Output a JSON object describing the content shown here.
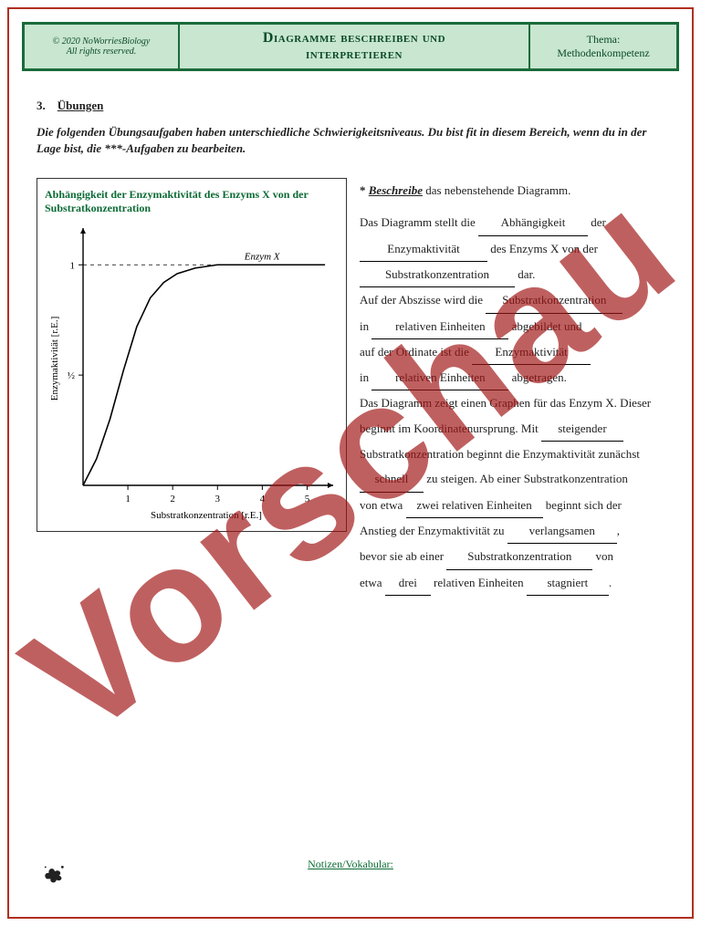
{
  "page": {
    "border_color": "#b03020",
    "background": "#ffffff"
  },
  "header": {
    "band_bg": "#c8e6d0",
    "band_border": "#1a6b3a",
    "text_color": "#0b4a28",
    "copyright_line1": "© 2020 NoWorriesBiology",
    "copyright_line2": "All rights reserved.",
    "title_line1": "Diagramme beschreiben und",
    "title_line2": "interpretieren",
    "theme_label": "Thema:",
    "theme_value": "Methodenkompetenz"
  },
  "section": {
    "number": "3.",
    "title": "Übungen"
  },
  "intro": "Die folgenden Übungsaufgaben haben unterschiedliche Schwierigkeitsniveaus. Du bist fit in diesem Bereich, wenn du in der Lage bist, die ***-Aufgaben zu bearbeiten.",
  "chart": {
    "type": "line",
    "title": "Abhängigkeit der Enzymaktivität des Enzyms X von der Substratkonzentration",
    "title_color": "#0b6b35",
    "xlabel": "Substratkonzentration [r.E.]",
    "ylabel": "Enzymaktivität [r.E.]",
    "series_label": "Enzym X",
    "xlim": [
      0,
      5.5
    ],
    "ylim": [
      0,
      1.15
    ],
    "xticks": [
      1,
      2,
      3,
      4,
      5
    ],
    "yticks": [
      0.5,
      1
    ],
    "ytick_labels": [
      "½",
      "1"
    ],
    "line_color": "#000000",
    "line_width": 1.6,
    "axis_color": "#000000",
    "background_color": "#ffffff",
    "label_fontsize": 11,
    "tick_fontsize": 11,
    "points": [
      [
        0,
        0
      ],
      [
        0.3,
        0.12
      ],
      [
        0.6,
        0.3
      ],
      [
        0.9,
        0.52
      ],
      [
        1.2,
        0.72
      ],
      [
        1.5,
        0.85
      ],
      [
        1.8,
        0.92
      ],
      [
        2.1,
        0.96
      ],
      [
        2.5,
        0.985
      ],
      [
        3.0,
        1.0
      ],
      [
        3.5,
        1.0
      ],
      [
        4.0,
        1.0
      ],
      [
        4.5,
        1.0
      ],
      [
        5.0,
        1.0
      ],
      [
        5.4,
        1.0
      ]
    ]
  },
  "task": {
    "star": "*",
    "verb": "Beschreibe",
    "rest": "das nebenstehende Diagramm."
  },
  "fill": {
    "t1a": "Das Diagramm stellt die",
    "b1": "Abhängigkeit",
    "t1b": "der",
    "b2": "Enzymaktivität",
    "t2": "des Enzyms X von der",
    "b3": "Substratkonzentration",
    "t3": "dar.",
    "t4a": "Auf der Abszisse wird die",
    "b4": "Substratkonzentration",
    "t5a": "in",
    "b5": "relativen Einheiten",
    "t5b": "abgebildet und",
    "t6a": "auf der Ordinate ist die",
    "b6": "Enzymaktivität",
    "t7a": "in",
    "b7": "relativen Einheiten",
    "t7b": "abgetragen.",
    "t8": "Das Diagramm zeigt einen Graphen für das Enzym X. Dieser",
    "t9a": "beginnt im Koordinatenursprung. Mit",
    "b9": "steigender",
    "t10": "Substratkonzentration beginnt die Enzymaktivität zunächst",
    "b11": "schnell",
    "t11": "zu steigen. Ab einer Substratkonzentration",
    "t12a": "von etwa",
    "b12": "zwei relativen Einheiten",
    "t12b": "beginnt sich der",
    "t13a": "Anstieg der Enzymaktivität zu",
    "b13": "verlangsamen",
    "t13b": ",",
    "t14a": "bevor sie ab einer",
    "b14": "Substratkonzentration",
    "t14b": "von",
    "t15a": "etwa",
    "b15a": "drei",
    "t15b": "relativen Einheiten",
    "b15b": "stagniert",
    "t15c": "."
  },
  "notes_label": "Notizen/Vokabular:",
  "watermark": "Vorschau"
}
